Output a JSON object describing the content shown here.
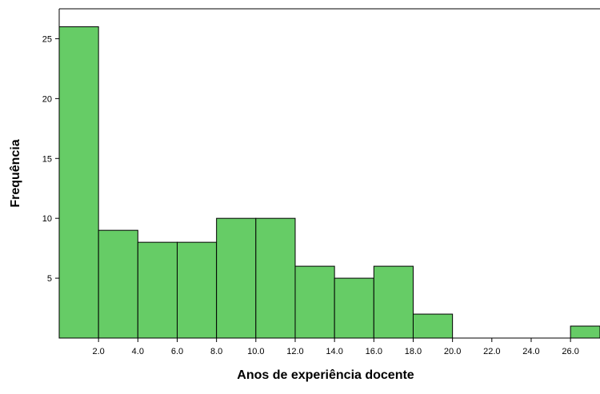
{
  "chart_data": {
    "type": "bar",
    "title": "",
    "xlabel": "Anos de experiência docente",
    "ylabel": "Frequência",
    "bar_color": "#66cc66",
    "bin_edges": [
      0,
      2,
      4,
      6,
      8,
      10,
      12,
      14,
      16,
      18,
      20,
      22,
      24,
      26,
      28
    ],
    "values": [
      26,
      9,
      8,
      8,
      10,
      10,
      6,
      5,
      6,
      2,
      0,
      0,
      0,
      1
    ],
    "x_ticks": [
      2,
      4,
      6,
      8,
      10,
      12,
      14,
      16,
      18,
      20,
      22,
      24,
      26
    ],
    "x_tick_labels": [
      "2.0",
      "4.0",
      "6.0",
      "8.0",
      "10.0",
      "12.0",
      "14.0",
      "16.0",
      "18.0",
      "20.0",
      "22.0",
      "24.0",
      "26.0"
    ],
    "y_ticks": [
      5,
      10,
      15,
      20,
      25
    ],
    "y_tick_labels": [
      "5",
      "10",
      "15",
      "20",
      "25"
    ],
    "xlim": [
      0,
      27.5
    ],
    "ylim": [
      0,
      27.5
    ],
    "grid": false,
    "legend": "none"
  }
}
